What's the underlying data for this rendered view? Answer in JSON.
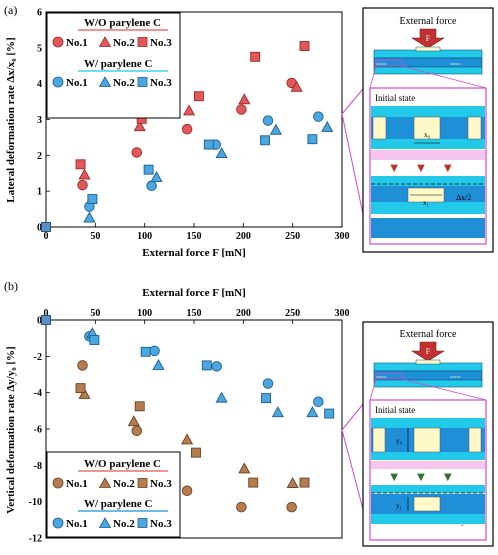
{
  "colors": {
    "wo_fill": "#e25858",
    "wo_stroke": "#9c2a2a",
    "w_fill": "#4aa7df",
    "w_stroke": "#1d5e92",
    "brown_fill": "#b57c4e",
    "brown_stroke": "#6b4225",
    "zero_fill": "#5a8fc8",
    "frame_magenta": "#d04ac8",
    "force_arrow": "#c0322f",
    "cyan": "#22c9e8",
    "deep_blue": "#1f8fd8",
    "electrode": "#fff8c8",
    "green_arrow": "#2f6f2f"
  },
  "chart_data": [
    {
      "type": "scatter",
      "panel_label": "(a)",
      "xlabel": "External force F [mN]",
      "ylabel": "Lateral deformation rate Δx/x₀ [%]",
      "xlim": [
        0,
        300
      ],
      "ylim": [
        0,
        6
      ],
      "xticks": [
        "0",
        "50",
        "100",
        "150",
        "200",
        "250",
        "300"
      ],
      "yticks": [
        "0",
        "1",
        "2",
        "3",
        "4",
        "5",
        "6"
      ],
      "legend": {
        "group_wo": "W/O parylene C",
        "group_w": "W/   parylene C",
        "entries": [
          "No.1",
          "No.2",
          "No.3"
        ]
      },
      "origin_point": {
        "x": 0,
        "y": 0
      },
      "series": [
        {
          "name": "W/O No.1",
          "group": "wo",
          "marker": "circle",
          "x": [
            37,
            92,
            143,
            198,
            249
          ],
          "y": [
            1.17,
            2.08,
            2.73,
            3.28,
            4.02
          ]
        },
        {
          "name": "W/O No.2",
          "group": "wo",
          "marker": "triangle",
          "x": [
            39,
            95,
            145,
            201,
            254
          ],
          "y": [
            1.45,
            2.8,
            3.24,
            3.55,
            3.9
          ]
        },
        {
          "name": "W/O No.3",
          "group": "wo",
          "marker": "square",
          "x": [
            35,
            97,
            155,
            212,
            262
          ],
          "y": [
            1.75,
            3.02,
            3.65,
            4.75,
            5.05
          ]
        },
        {
          "name": "W/ No.1",
          "group": "w",
          "marker": "circle",
          "x": [
            44,
            107,
            172,
            225,
            276
          ],
          "y": [
            0.57,
            1.15,
            2.3,
            2.97,
            3.08
          ]
        },
        {
          "name": "W/ No.2",
          "group": "w",
          "marker": "triangle",
          "x": [
            44,
            112,
            178,
            233,
            285
          ],
          "y": [
            0.25,
            1.38,
            2.05,
            2.7,
            2.78
          ]
        },
        {
          "name": "W/ No.3",
          "group": "w",
          "marker": "square",
          "x": [
            47,
            104,
            165,
            222,
            270
          ],
          "y": [
            0.78,
            1.6,
            2.3,
            2.42,
            2.45
          ]
        }
      ]
    },
    {
      "type": "scatter",
      "panel_label": "(b)",
      "xlabel": "External force F [mN]",
      "ylabel": "Vertical deformation rate Δy/y₀ [%]",
      "xlim": [
        0,
        300
      ],
      "ylim": [
        -12,
        0
      ],
      "xticks": [
        "0",
        "50",
        "100",
        "150",
        "200",
        "250",
        "300"
      ],
      "yticks": [
        "0",
        "-2",
        "-4",
        "-6",
        "-8",
        "-10",
        "-12"
      ],
      "legend": {
        "group_wo": "W/O parylene C",
        "group_w": "W/   parylene C",
        "entries": [
          "No.1",
          "No.2",
          "No.3"
        ]
      },
      "origin_point": {
        "x": 0,
        "y": 0
      },
      "series": [
        {
          "name": "W/O No.1",
          "group": "wo",
          "marker": "circle",
          "x": [
            37,
            92,
            143,
            198,
            249
          ],
          "y": [
            -2.5,
            -6.1,
            -9.4,
            -10.3,
            -10.3
          ]
        },
        {
          "name": "W/O No.2",
          "group": "wo",
          "marker": "triangle",
          "x": [
            39,
            89,
            143,
            201,
            250
          ],
          "y": [
            -4.1,
            -5.6,
            -6.6,
            -8.2,
            -9.0
          ]
        },
        {
          "name": "W/O No.3",
          "group": "wo",
          "marker": "square",
          "x": [
            35,
            95,
            152,
            210,
            262
          ],
          "y": [
            -3.75,
            -4.75,
            -7.3,
            -8.95,
            -8.95
          ]
        },
        {
          "name": "W/ No.1",
          "group": "w",
          "marker": "circle",
          "x": [
            44,
            110,
            173,
            225,
            276
          ],
          "y": [
            -0.9,
            -1.7,
            -2.55,
            -3.5,
            -4.5
          ]
        },
        {
          "name": "W/ No.2",
          "group": "w",
          "marker": "triangle",
          "x": [
            47,
            114,
            178,
            235,
            270
          ],
          "y": [
            -0.75,
            -2.5,
            -4.3,
            -5.1,
            -5.1
          ]
        },
        {
          "name": "W/ No.3",
          "group": "w",
          "marker": "square",
          "x": [
            49,
            101,
            163,
            223,
            287
          ],
          "y": [
            -1.1,
            -1.75,
            -2.5,
            -4.3,
            -5.15
          ]
        }
      ]
    }
  ],
  "inset_a": {
    "title": "External force",
    "force_label": "F",
    "state_label": "Initial state",
    "x0_label": "x₀",
    "x1_label": "x₁",
    "dx_label": "Δx/2"
  },
  "inset_b": {
    "title": "External force",
    "force_label": "F",
    "state_label": "Initial state",
    "y0_label": "y₀",
    "y1_label": "y₁",
    "dy_label": "Δy"
  }
}
